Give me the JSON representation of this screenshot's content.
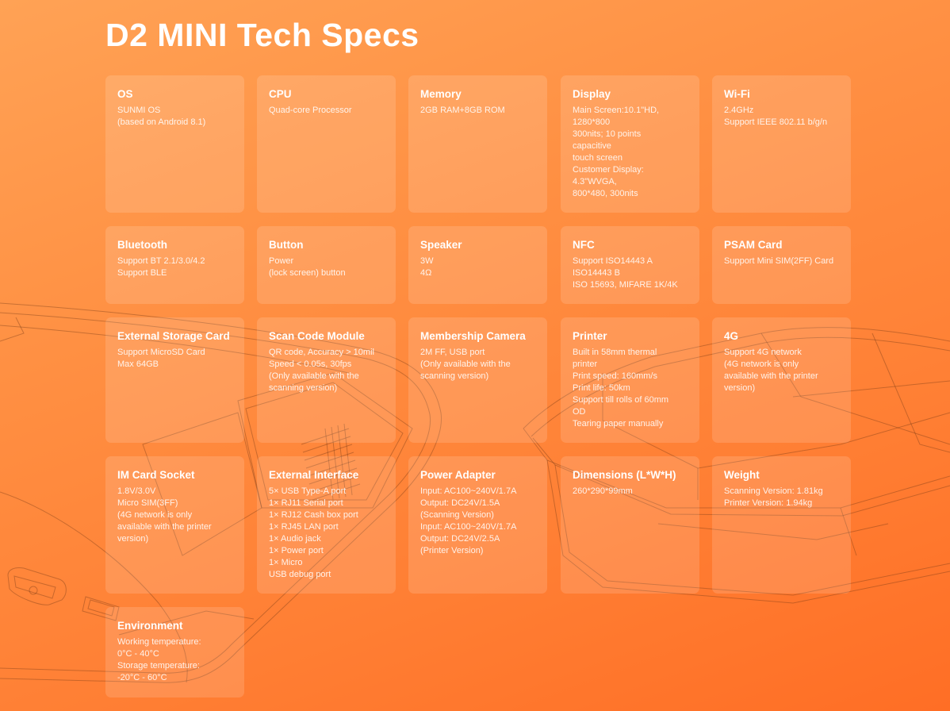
{
  "header": {
    "title": "D2 MINI Tech Specs"
  },
  "specs": [
    {
      "label": "OS",
      "value": "SUNMI OS\n(based on Android 8.1)"
    },
    {
      "label": "CPU",
      "value": "Quad-core Processor"
    },
    {
      "label": "Memory",
      "value": "2GB RAM+8GB ROM"
    },
    {
      "label": "Display",
      "value": "Main Screen:10.1\"HD,\n1280*800\n300nits; 10 points\ncapacitive\ntouch screen\nCustomer Display:\n4.3\"WVGA,\n800*480, 300nits"
    },
    {
      "label": "Wi-Fi",
      "value": "2.4GHz\nSupport IEEE 802.11 b/g/n"
    },
    {
      "label": "Bluetooth",
      "value": "Support BT 2.1/3.0/4.2\nSupport BLE"
    },
    {
      "label": "Button",
      "value": "Power\n(lock screen) button"
    },
    {
      "label": "Speaker",
      "value": "3W\n4Ω"
    },
    {
      "label": "NFC",
      "value": "Support ISO14443 A\nISO14443 B\nISO 15693, MIFARE 1K/4K"
    },
    {
      "label": "PSAM Card",
      "value": "Support Mini SIM(2FF) Card"
    },
    {
      "label": "External Storage Card",
      "value": "Support MicroSD Card\nMax 64GB"
    },
    {
      "label": "Scan Code Module",
      "value": "QR code, Accuracy > 10mil\nSpeed < 0.05s, 30fps\n(Only available with the\nscanning version)"
    },
    {
      "label": "Membership Camera",
      "value": "2M FF, USB port\n(Only available with the\nscanning version)"
    },
    {
      "label": "Printer",
      "value": "Built in 58mm thermal\nprinter\nPrint speed: 160mm/s\nPrint life: 50km\nSupport till rolls of 60mm\nOD\nTearing paper manually"
    },
    {
      "label": "4G",
      "value": "Support 4G network\n(4G network is only\navailable with the printer\nversion)"
    },
    {
      "label": "IM Card Socket",
      "value": "1.8V/3.0V\nMicro SIM(3FF)\n(4G network is only\navailable with the printer\nversion)"
    },
    {
      "label": "External Interface",
      "value": "5× USB Type-A port\n1× RJ11 Serial port\n1× RJ12 Cash box port\n1× RJ45 LAN port\n1× Audio jack\n1× Power port\n1× Micro\nUSB debug port"
    },
    {
      "label": "Power Adapter",
      "value": "Input: AC100~240V/1.7A\nOutput: DC24V/1.5A\n(Scanning Version)\nInput: AC100~240V/1.7A\nOutput: DC24V/2.5A\n(Printer Version)"
    },
    {
      "label": "Dimensions (L*W*H)",
      "value": "260*290*99mm"
    },
    {
      "label": "Weight",
      "value": "Scanning Version: 1.81kg\nPrinter Version: 1.94kg"
    },
    {
      "label": "Environment",
      "value": "Working temperature:\n0°C - 40°C\nStorage temperature:\n-20°C - 60°C"
    }
  ]
}
